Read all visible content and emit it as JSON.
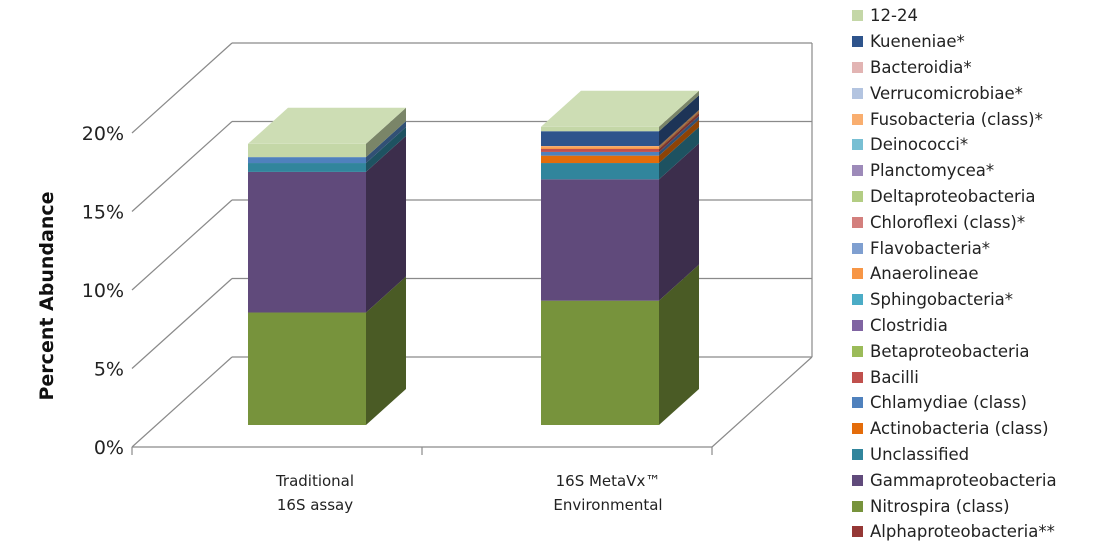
{
  "chart_data": {
    "type": "bar",
    "stacked": true,
    "three_d": true,
    "categories": [
      [
        "Traditional",
        "16S assay"
      ],
      [
        "16S MetaVx™",
        "Environmental"
      ]
    ],
    "ylabel": "Percent Abundance",
    "ylim": [
      0,
      20
    ],
    "yticks": [
      "0%",
      "5%",
      "10%",
      "15%",
      "20%"
    ],
    "grid": true,
    "legend_position": "right",
    "series": [
      {
        "name": "Alphaproteobacteria**",
        "color": "#953735",
        "values": [
          0.0,
          0.0
        ]
      },
      {
        "name": "Nitrospira (class)",
        "color": "#77933c",
        "values": [
          7.6,
          8.4
        ]
      },
      {
        "name": "Gammaproteobacteria",
        "color": "#604a7b",
        "values": [
          9.5,
          8.2
        ]
      },
      {
        "name": "Unclassified",
        "color": "#31859c",
        "values": [
          0.6,
          1.1
        ]
      },
      {
        "name": "Actinobacteria (class)",
        "color": "#e46c0a",
        "values": [
          0.0,
          0.5
        ]
      },
      {
        "name": "Chlamydiae (class)",
        "color": "#4f81bd",
        "values": [
          0.4,
          0.25
        ]
      },
      {
        "name": "Bacilli",
        "color": "#c0504d",
        "values": [
          0.0,
          0.2
        ]
      },
      {
        "name": "Betaproteobacteria",
        "color": "#9bbb59",
        "values": [
          0.0,
          0.0
        ]
      },
      {
        "name": "Clostridia",
        "color": "#8064a2",
        "values": [
          0.0,
          0.0
        ]
      },
      {
        "name": "Sphingobacteria*",
        "color": "#4bacc6",
        "values": [
          0.0,
          0.0
        ]
      },
      {
        "name": "Anaerolineae",
        "color": "#f79646",
        "values": [
          0.0,
          0.1
        ]
      },
      {
        "name": "Flavobacteria*",
        "color": "#7f9fd0",
        "values": [
          0.0,
          0.0
        ]
      },
      {
        "name": "Chloroflexi (class)*",
        "color": "#d37f7d",
        "values": [
          0.0,
          0.0
        ]
      },
      {
        "name": "Deltaproteobacteria",
        "color": "#b3cd83",
        "values": [
          0.0,
          0.0
        ]
      },
      {
        "name": "Planctomycea*",
        "color": "#9d8ab9",
        "values": [
          0.0,
          0.0
        ]
      },
      {
        "name": "Deinococci*",
        "color": "#78bfd3",
        "values": [
          0.0,
          0.0
        ]
      },
      {
        "name": "Fusobacteria (class)*",
        "color": "#f9ae6f",
        "values": [
          0.0,
          0.1
        ]
      },
      {
        "name": "Verrucomicrobiae*",
        "color": "#b3c4e0",
        "values": [
          0.0,
          0.0
        ]
      },
      {
        "name": "Bacteroidia*",
        "color": "#e2b4b3",
        "values": [
          0.0,
          0.0
        ]
      },
      {
        "name": "Kueneniae*",
        "color": "#2e548c",
        "values": [
          0.0,
          1.0
        ]
      },
      {
        "name": "12-24",
        "color": "#c4d7a7",
        "values": [
          0.9,
          0.3
        ]
      }
    ]
  }
}
